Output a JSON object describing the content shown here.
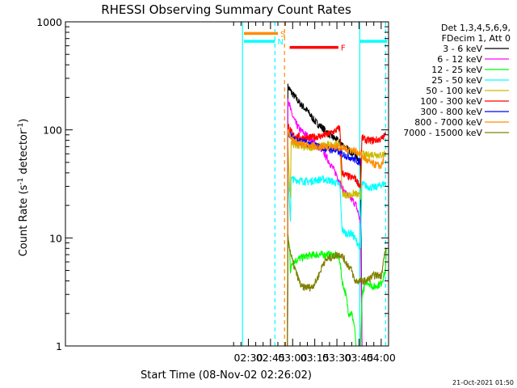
{
  "chart_data": {
    "type": "line",
    "title": "RHESSI Observing Summary Count Rates",
    "xlabel": "Start Time (08-Nov-02 02:26:02)",
    "ylabel_prefix": "Count Rate (s",
    "ylabel_sup1": "-1",
    "ylabel_mid": " detector",
    "ylabel_sup2": "-1",
    "ylabel_suffix": ")",
    "y_scale": "log",
    "ylim": [
      1,
      1000
    ],
    "xlim_minutes": [
      26.03,
      245
    ],
    "y_ticks": [
      {
        "value": 1,
        "label": "1"
      },
      {
        "value": 10,
        "label": "10"
      },
      {
        "value": 100,
        "label": "100"
      },
      {
        "value": 1000,
        "label": "1000"
      }
    ],
    "x_ticks": [
      {
        "minutes": 150,
        "label": "02:30"
      },
      {
        "minutes": 165,
        "label": "02:45"
      },
      {
        "minutes": 180,
        "label": "03:00"
      },
      {
        "minutes": 195,
        "label": "03:15"
      },
      {
        "minutes": 210,
        "label": "03:30"
      },
      {
        "minutes": 225,
        "label": "03:45"
      },
      {
        "minutes": 240,
        "label": "04:00"
      }
    ],
    "legend_header": [
      "Det 1,3,4,5,6,9,",
      "FDecim 1, Att 0"
    ],
    "legend_position": "right",
    "series": [
      {
        "name": "3 - 6 keV",
        "color": "#000000",
        "points": [
          [
            176.5,
            1
          ],
          [
            176.8,
            250
          ],
          [
            180,
            215
          ],
          [
            185,
            175
          ],
          [
            190,
            150
          ],
          [
            195,
            120
          ],
          [
            200,
            105
          ],
          [
            205,
            90
          ],
          [
            210,
            80
          ],
          [
            213,
            75
          ],
          [
            216,
            68
          ],
          [
            220,
            62
          ],
          [
            223,
            58
          ],
          [
            226,
            50
          ],
          [
            227,
            1
          ]
        ]
      },
      {
        "name": "6 - 12 keV",
        "color": "#ff00ff",
        "points": [
          [
            176.5,
            1
          ],
          [
            176.8,
            200
          ],
          [
            179,
            145
          ],
          [
            182,
            115
          ],
          [
            185,
            100
          ],
          [
            190,
            88
          ],
          [
            195,
            75
          ],
          [
            200,
            65
          ],
          [
            205,
            50
          ],
          [
            210,
            38
          ],
          [
            214,
            28
          ],
          [
            218,
            24
          ],
          [
            221,
            22
          ],
          [
            223,
            20
          ],
          [
            226,
            14
          ],
          [
            227,
            1
          ]
        ]
      },
      {
        "name": "12 - 25 keV",
        "color": "#00ff00",
        "points": [
          [
            176.5,
            1
          ],
          [
            176.8,
            10
          ],
          [
            178,
            8
          ],
          [
            178.5,
            5
          ],
          [
            180,
            6
          ],
          [
            185,
            6.5
          ],
          [
            190,
            6.8
          ],
          [
            195,
            7
          ],
          [
            200,
            7
          ],
          [
            205,
            7
          ],
          [
            210,
            6.8
          ],
          [
            212,
            6.2
          ],
          [
            213.5,
            4
          ],
          [
            216,
            3
          ],
          [
            218,
            2
          ],
          [
            220,
            2
          ],
          [
            222,
            1.5
          ],
          [
            223,
            1
          ],
          [
            226,
            1
          ],
          [
            227,
            3
          ],
          [
            230,
            4
          ],
          [
            235,
            3.5
          ],
          [
            240,
            3.8
          ],
          [
            243,
            5
          ],
          [
            243.5,
            8
          ]
        ]
      },
      {
        "name": "25 - 50 keV",
        "color": "#00ffff",
        "points": [
          [
            176.5,
            1
          ],
          [
            176.8,
            40
          ],
          [
            178,
            20
          ],
          [
            178.5,
            15
          ],
          [
            179,
            35
          ],
          [
            185,
            34
          ],
          [
            190,
            33
          ],
          [
            195,
            34
          ],
          [
            200,
            35
          ],
          [
            205,
            34
          ],
          [
            210,
            32
          ],
          [
            212,
            31
          ],
          [
            213.5,
            12
          ],
          [
            216,
            11
          ],
          [
            220,
            11
          ],
          [
            222,
            10
          ],
          [
            226,
            8
          ],
          [
            227,
            32
          ],
          [
            230,
            30
          ],
          [
            235,
            29
          ],
          [
            240,
            31
          ],
          [
            243,
            32
          ]
        ]
      },
      {
        "name": "50 - 100 keV",
        "color": "#ccbb00",
        "points": [
          [
            176.5,
            1
          ],
          [
            176.8,
            80
          ],
          [
            178,
            28
          ],
          [
            178.5,
            25
          ],
          [
            179,
            75
          ],
          [
            185,
            70
          ],
          [
            190,
            68
          ],
          [
            195,
            70
          ],
          [
            200,
            72
          ],
          [
            205,
            72
          ],
          [
            210,
            74
          ],
          [
            212,
            73
          ],
          [
            213.5,
            26
          ],
          [
            216,
            25
          ],
          [
            220,
            25
          ],
          [
            222,
            26
          ],
          [
            226,
            24
          ],
          [
            227,
            60
          ],
          [
            230,
            58
          ],
          [
            235,
            60
          ],
          [
            240,
            58
          ],
          [
            243,
            62
          ]
        ]
      },
      {
        "name": "100 - 300 keV",
        "color": "#ff0000",
        "points": [
          [
            176.5,
            1
          ],
          [
            176.8,
            110
          ],
          [
            180,
            90
          ],
          [
            185,
            85
          ],
          [
            190,
            84
          ],
          [
            195,
            86
          ],
          [
            200,
            88
          ],
          [
            205,
            92
          ],
          [
            210,
            100
          ],
          [
            212,
            105
          ],
          [
            213.5,
            40
          ],
          [
            216,
            38
          ],
          [
            220,
            36
          ],
          [
            222,
            36
          ],
          [
            226,
            30
          ],
          [
            227,
            85
          ],
          [
            230,
            80
          ],
          [
            235,
            80
          ],
          [
            240,
            82
          ],
          [
            243,
            90
          ]
        ]
      },
      {
        "name": "300 - 800 keV",
        "color": "#0000ff",
        "points": [
          [
            176.5,
            1
          ],
          [
            176.8,
            95
          ],
          [
            180,
            85
          ],
          [
            185,
            78
          ],
          [
            190,
            75
          ],
          [
            195,
            72
          ],
          [
            200,
            68
          ],
          [
            205,
            66
          ],
          [
            210,
            64
          ],
          [
            213,
            60
          ],
          [
            216,
            58
          ],
          [
            220,
            55
          ],
          [
            223,
            52
          ],
          [
            226,
            50
          ]
        ]
      },
      {
        "name": "800 - 7000 keV",
        "color": "#ff8c00",
        "points": [
          [
            176.5,
            1
          ],
          [
            176.8,
            100
          ],
          [
            180,
            80
          ],
          [
            185,
            74
          ],
          [
            190,
            72
          ],
          [
            195,
            70
          ],
          [
            200,
            70
          ],
          [
            205,
            70
          ],
          [
            210,
            70
          ],
          [
            213,
            68
          ],
          [
            216,
            67
          ],
          [
            220,
            65
          ],
          [
            223,
            63
          ],
          [
            226,
            60
          ],
          [
            230,
            52
          ],
          [
            235,
            48
          ],
          [
            240,
            46
          ],
          [
            243,
            60
          ]
        ]
      },
      {
        "name": "7000 - 15000 keV",
        "color": "#808000",
        "points": [
          [
            176.5,
            1
          ],
          [
            176.8,
            10
          ],
          [
            178,
            8
          ],
          [
            180,
            6
          ],
          [
            183,
            4.5
          ],
          [
            186,
            3.5
          ],
          [
            190,
            3.5
          ],
          [
            193,
            3.5
          ],
          [
            196,
            4
          ],
          [
            199,
            5
          ],
          [
            201,
            6
          ],
          [
            205,
            6.5
          ],
          [
            210,
            7
          ],
          [
            213,
            7
          ],
          [
            216,
            6
          ],
          [
            220,
            5
          ],
          [
            222,
            4
          ],
          [
            226,
            4
          ],
          [
            230,
            4
          ],
          [
            235,
            4.5
          ],
          [
            240,
            4.5
          ],
          [
            243,
            8
          ]
        ]
      }
    ],
    "flag_bars": [
      {
        "name": "S",
        "color": "#ff8c00",
        "x_start": 147,
        "x_end": 170,
        "y": 780
      },
      {
        "name": "N",
        "color": "#00ffff",
        "x_start": 147,
        "x_end": 168,
        "y": 660
      },
      {
        "name": "F",
        "color": "#ff0000",
        "x_start": 178,
        "x_end": 211,
        "y": 580
      },
      {
        "name": "",
        "color": "#00ffff",
        "x_start": 225.5,
        "x_end": 244,
        "y": 660
      }
    ],
    "vlines": [
      {
        "minutes": 146,
        "color": "#00ffff",
        "style": "solid"
      },
      {
        "minutes": 168,
        "color": "#00ffff",
        "style": "dashed"
      },
      {
        "minutes": 174.5,
        "color": "#ff8c00",
        "style": "dashed"
      },
      {
        "minutes": 225.5,
        "color": "#00ffff",
        "style": "solid"
      },
      {
        "minutes": 243,
        "color": "#00ffff",
        "style": "dashed"
      }
    ]
  },
  "footer_stamp": "21-Oct-2021 01:50"
}
